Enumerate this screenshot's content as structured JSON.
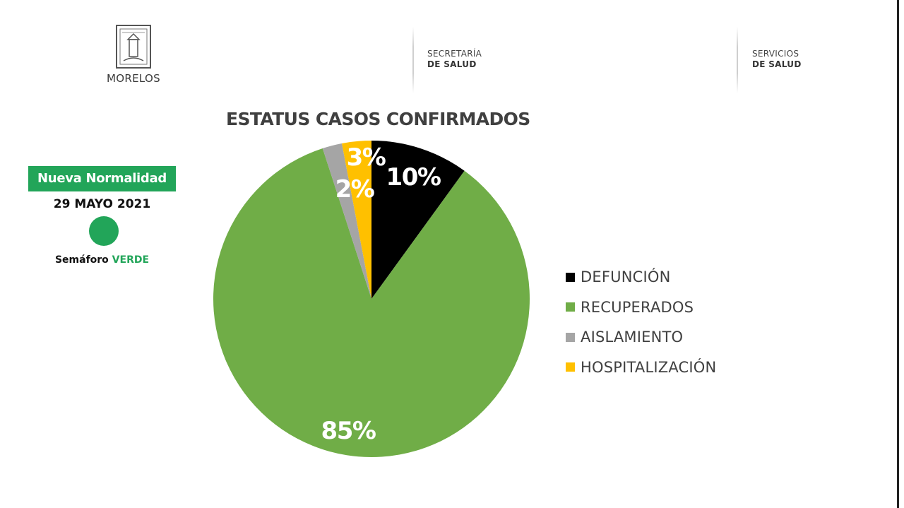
{
  "header": {
    "logo_name": "MORELOS",
    "agency_1": {
      "line1": "SECRETARÍA",
      "line2": "DE SALUD"
    },
    "agency_2": {
      "line1": "SERVICIOS",
      "line2": "DE SALUD"
    }
  },
  "status_panel": {
    "phase": "Nueva Normalidad",
    "date": "29 MAYO 2021",
    "semaforo_prefix": "Semáforo ",
    "semaforo_color_word": "VERDE",
    "semaforo_color": "#22a559"
  },
  "chart_data": {
    "type": "pie",
    "title": "ESTATUS CASOS CONFIRMADOS",
    "start_angle_deg": 0,
    "direction": "clockwise",
    "slices": [
      {
        "name": "DEFUNCIÓN",
        "value": 10,
        "label": "10%",
        "color": "#000000"
      },
      {
        "name": "RECUPERADOS",
        "value": 85,
        "label": "85%",
        "color": "#70ad47"
      },
      {
        "name": "AISLAMIENTO",
        "value": 2,
        "label": "2%",
        "color": "#a5a5a5"
      },
      {
        "name": "HOSPITALIZACIÓN",
        "value": 3,
        "label": "3%",
        "color": "#ffc000"
      }
    ],
    "legend_position": "right"
  }
}
